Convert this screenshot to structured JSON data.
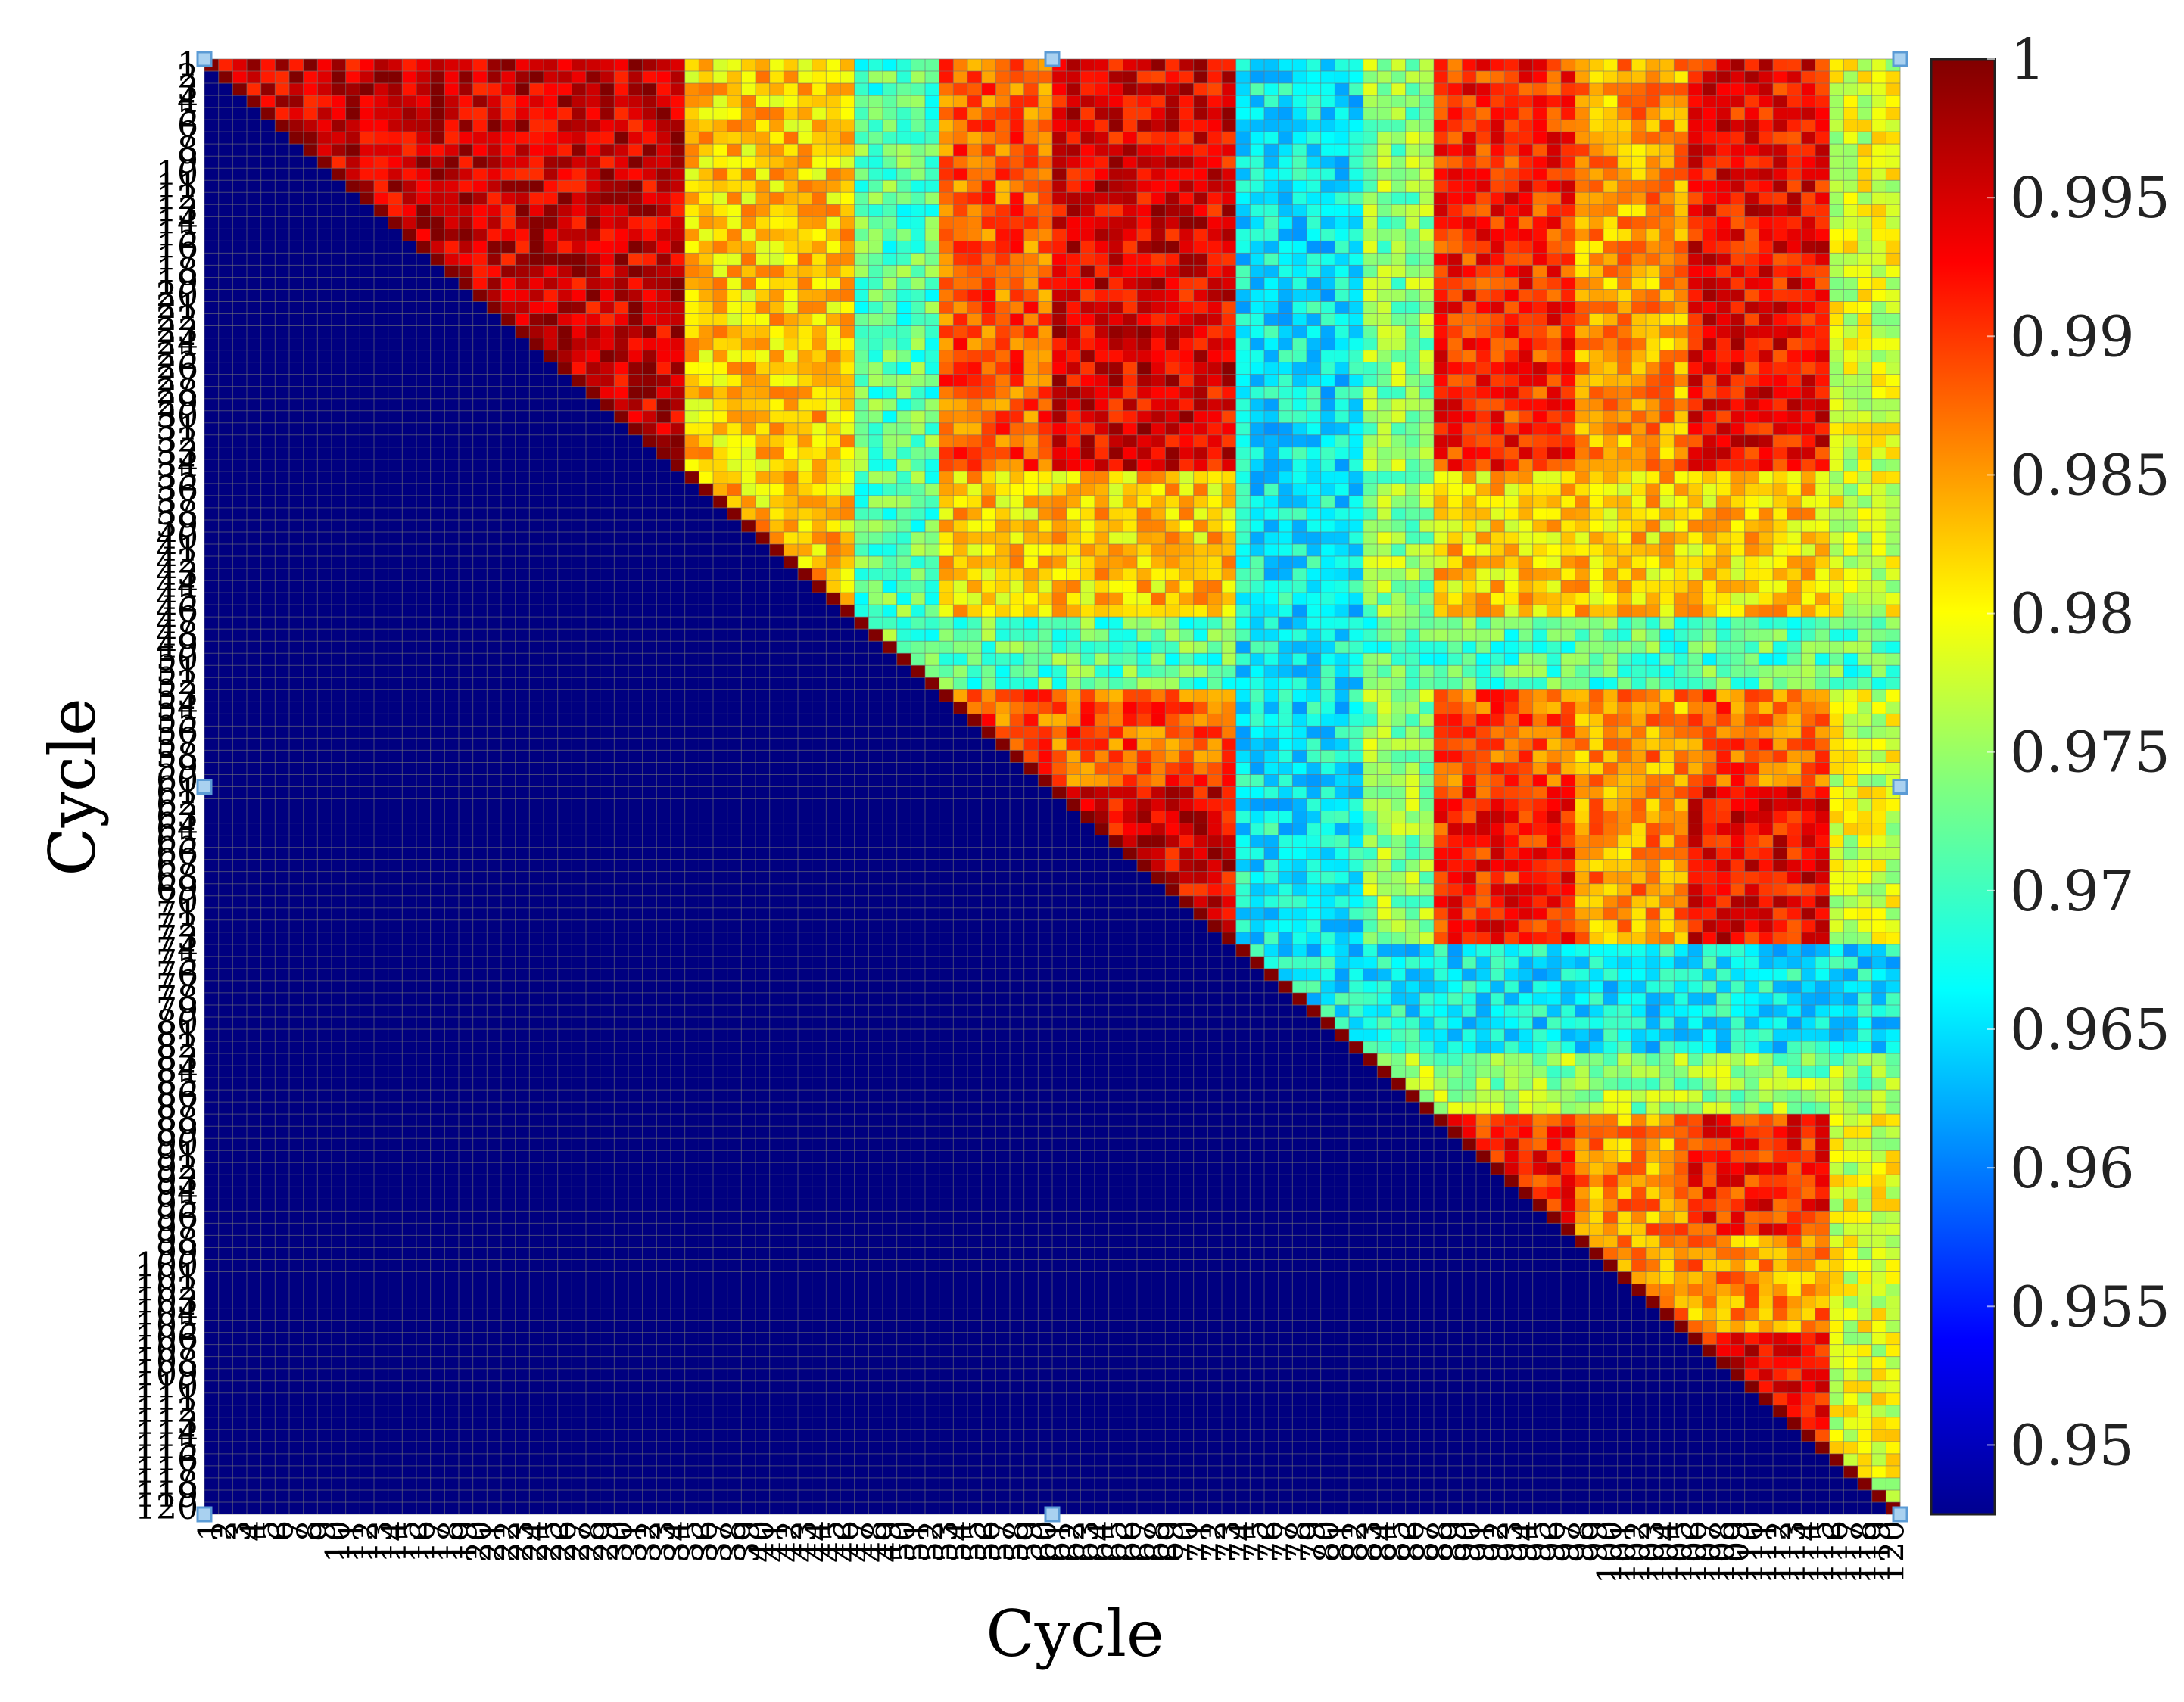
{
  "chart_data": {
    "type": "heatmap",
    "title": "",
    "xlabel": "Cycle",
    "ylabel": "Cycle",
    "n_cycles": 120,
    "x_tick_labels": "1..120 (one per cycle, overlapping)",
    "y_tick_labels": "1..120 (one per cycle, overlapping)",
    "lower_triangle_fill": "masked (shown as darkest colour)",
    "colorbar": {
      "range": [
        0.9475,
        1.0
      ],
      "ticks": [
        {
          "value": 1,
          "label": "1"
        },
        {
          "value": 0.995,
          "label": "0.995"
        },
        {
          "value": 0.99,
          "label": "0.99"
        },
        {
          "value": 0.985,
          "label": "0.985"
        },
        {
          "value": 0.98,
          "label": "0.98"
        },
        {
          "value": 0.975,
          "label": "0.975"
        },
        {
          "value": 0.97,
          "label": "0.97"
        },
        {
          "value": 0.965,
          "label": "0.965"
        },
        {
          "value": 0.96,
          "label": "0.96"
        },
        {
          "value": 0.955,
          "label": "0.955"
        },
        {
          "value": 0.95,
          "label": "0.95"
        }
      ],
      "colormap": "jet"
    },
    "row_quality_segments": [
      {
        "from_cycle": 1,
        "to_cycle": 34,
        "level": 0.996
      },
      {
        "from_cycle": 35,
        "to_cycle": 46,
        "level": 0.983
      },
      {
        "from_cycle": 47,
        "to_cycle": 52,
        "level": 0.972
      },
      {
        "from_cycle": 53,
        "to_cycle": 60,
        "level": 0.989
      },
      {
        "from_cycle": 61,
        "to_cycle": 73,
        "level": 0.995
      },
      {
        "from_cycle": 74,
        "to_cycle": 82,
        "level": 0.967
      },
      {
        "from_cycle": 83,
        "to_cycle": 87,
        "level": 0.975
      },
      {
        "from_cycle": 88,
        "to_cycle": 97,
        "level": 0.992
      },
      {
        "from_cycle": 98,
        "to_cycle": 105,
        "level": 0.986
      },
      {
        "from_cycle": 106,
        "to_cycle": 115,
        "level": 0.994
      },
      {
        "from_cycle": 116,
        "to_cycle": 120,
        "level": 0.979
      }
    ],
    "grid": true,
    "legend": "colorbar-right"
  },
  "colors": {
    "background": "#ffffff",
    "grid_line": "#777777",
    "axis_text": "#000000",
    "selection_handle_fill": "#a9d1f0",
    "selection_handle_stroke": "#5b9bd5"
  },
  "labels": {
    "x_axis_title": "Cycle",
    "y_axis_title": "Cycle"
  }
}
